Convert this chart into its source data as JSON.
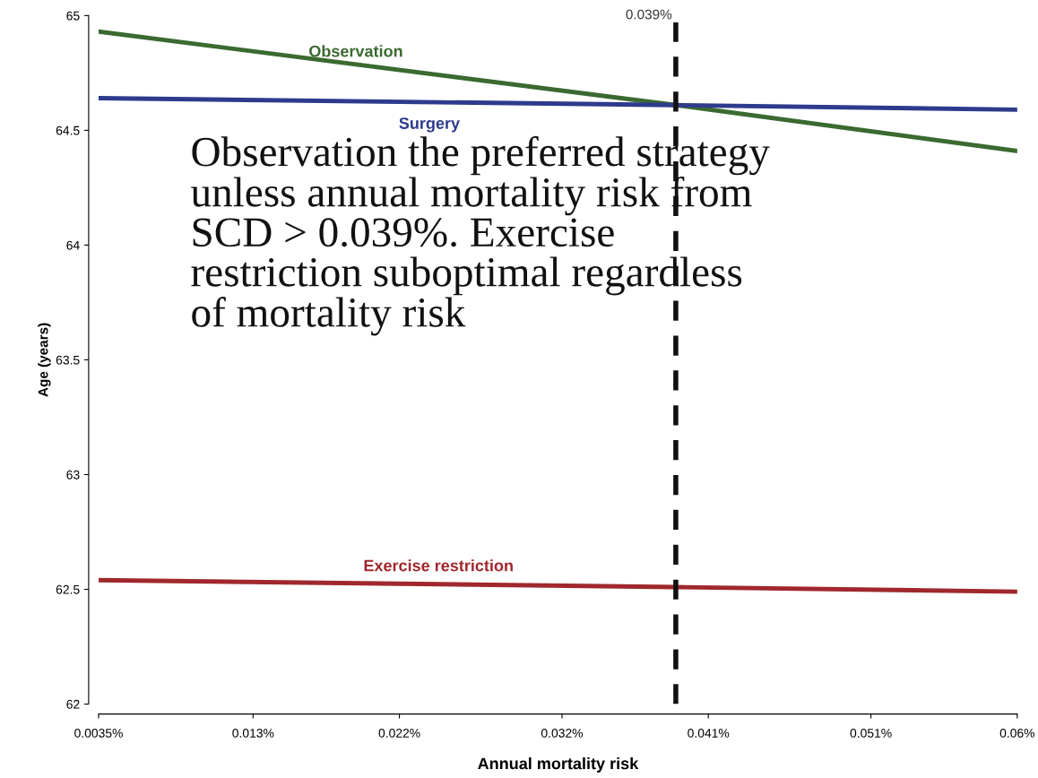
{
  "chart_data": {
    "type": "line",
    "xlabel": "Annual mortality risk",
    "ylabel": "Age (years)",
    "series": [
      {
        "name": "Observation",
        "color": "#3a6a30",
        "x": [
          0.0035,
          0.039,
          0.06
        ],
        "values": [
          64.93,
          64.61,
          64.41
        ]
      },
      {
        "name": "Surgery",
        "color": "#2e3a8c",
        "x": [
          0.0035,
          0.039,
          0.06
        ],
        "values": [
          64.64,
          64.61,
          64.59
        ]
      },
      {
        "name": "Exercise restriction",
        "color": "#a0282c",
        "x": [
          0.0035,
          0.039,
          0.06
        ],
        "values": [
          62.54,
          62.51,
          62.49
        ]
      }
    ],
    "xlim": [
      0.0035,
      0.06
    ],
    "xticks": [
      {
        "value": 0.0035,
        "label": "0.0035%"
      },
      {
        "value": 0.013,
        "label": "0.013%"
      },
      {
        "value": 0.022,
        "label": "0.022%"
      },
      {
        "value": 0.032,
        "label": "0.032%"
      },
      {
        "value": 0.041,
        "label": "0.041%"
      },
      {
        "value": 0.051,
        "label": "0.051%"
      },
      {
        "value": 0.06,
        "label": "0.06%"
      }
    ],
    "ylim": [
      62,
      65
    ],
    "yticks": [
      62,
      62.5,
      63,
      63.5,
      64,
      64.5,
      65
    ],
    "ref_lines": [
      {
        "axis": "x",
        "value": 0.039,
        "label": "0.039%",
        "color": "#111111",
        "line_style": "dashed"
      }
    ],
    "annotations": [
      "Observation the preferred strategy\nunless annual mortality risk from\nSCD > 0.039%. Exercise\nrestriction suboptimal regardless\nof mortality risk"
    ],
    "grid": false,
    "legend": false,
    "marker": "none",
    "line_style": "solid"
  }
}
